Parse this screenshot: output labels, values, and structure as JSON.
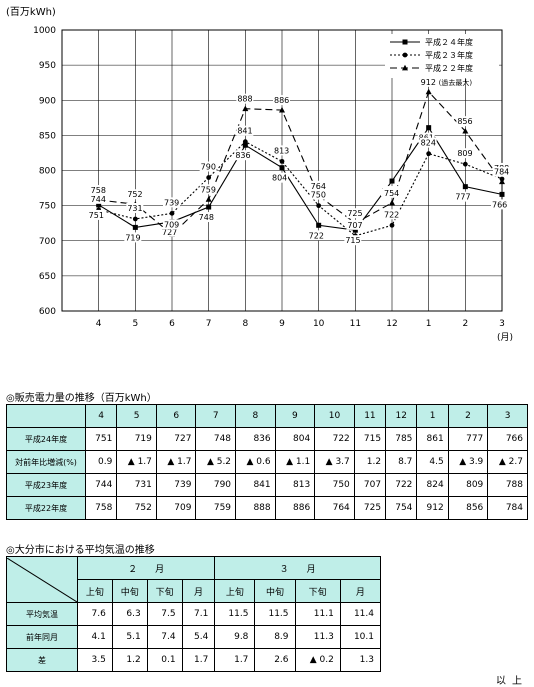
{
  "chart_data": {
    "type": "line",
    "ylabel": "(百万kWh)",
    "xlabel": "(月)",
    "ylim": [
      600,
      1000
    ],
    "yticks": [
      600,
      650,
      700,
      750,
      800,
      850,
      900,
      950,
      1000
    ],
    "categories": [
      "4",
      "5",
      "6",
      "7",
      "8",
      "9",
      "10",
      "11",
      "12",
      "1",
      "2",
      "3"
    ],
    "grid": true,
    "legend_position": "top-right",
    "series": [
      {
        "name": "平成２４年度",
        "values": [
          751,
          719,
          727,
          748,
          836,
          804,
          722,
          715,
          785,
          861,
          777,
          766
        ],
        "marker": "square",
        "dash": "",
        "color": "#000000"
      },
      {
        "name": "平成２３年度",
        "values": [
          744,
          731,
          739,
          790,
          841,
          813,
          750,
          707,
          722,
          824,
          809,
          788
        ],
        "marker": "circle",
        "dash": "2,2",
        "color": "#000000"
      },
      {
        "name": "平成２２年度",
        "values": [
          758,
          752,
          709,
          759,
          888,
          886,
          764,
          725,
          754,
          912,
          856,
          784
        ],
        "marker": "triangle",
        "dash": "7,4",
        "color": "#000000"
      }
    ],
    "annotations": [
      {
        "text": "(過去最大)",
        "series": 2,
        "index": 9
      }
    ]
  },
  "table1": {
    "title": "◎販売電力量の推移（百万kWh）",
    "months": [
      "4",
      "5",
      "6",
      "7",
      "8",
      "9",
      "10",
      "11",
      "12",
      "1",
      "2",
      "3"
    ],
    "rows": [
      {
        "label": "平成24年度",
        "values": [
          "751",
          "719",
          "727",
          "748",
          "836",
          "804",
          "722",
          "715",
          "785",
          "861",
          "777",
          "766"
        ]
      },
      {
        "label": "対前年比増減(%)",
        "values": [
          "0.9",
          "▲ 1.7",
          "▲ 1.7",
          "▲ 5.2",
          "▲ 0.6",
          "▲ 1.1",
          "▲ 3.7",
          "1.2",
          "8.7",
          "4.5",
          "▲ 3.9",
          "▲ 2.7"
        ]
      },
      {
        "label": "平成23年度",
        "values": [
          "744",
          "731",
          "739",
          "790",
          "841",
          "813",
          "750",
          "707",
          "722",
          "824",
          "809",
          "788"
        ]
      },
      {
        "label": "平成22年度",
        "values": [
          "758",
          "752",
          "709",
          "759",
          "888",
          "886",
          "764",
          "725",
          "754",
          "912",
          "856",
          "784"
        ]
      }
    ]
  },
  "table2": {
    "title": "◎大分市における平均気温の推移",
    "month_headers": [
      "２　　月",
      "３　　月"
    ],
    "sub_headers": [
      "上旬",
      "中旬",
      "下旬",
      "月",
      "上旬",
      "中旬",
      "下旬",
      "月"
    ],
    "rows": [
      {
        "label": "平均気温",
        "values": [
          "7.6",
          "6.3",
          "7.5",
          "7.1",
          "11.5",
          "11.5",
          "11.1",
          "11.4"
        ]
      },
      {
        "label": "前年同月",
        "values": [
          "4.1",
          "5.1",
          "7.4",
          "5.4",
          "9.8",
          "8.9",
          "11.3",
          "10.1"
        ]
      },
      {
        "label": "差",
        "values": [
          "3.5",
          "1.2",
          "0.1",
          "1.7",
          "1.7",
          "2.6",
          "▲ 0.2",
          "1.3"
        ]
      }
    ]
  },
  "footer": "以上"
}
